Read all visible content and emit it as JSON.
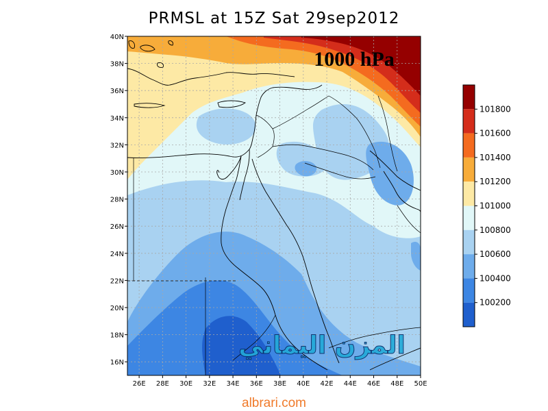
{
  "title": "PRMSL at 15Z Sat 29sep2012",
  "level_label": "1000 hPa",
  "watermark": "المزن اليماني",
  "footer": "albrari.com",
  "lat_ticks": [
    "40N",
    "38N",
    "36N",
    "34N",
    "32N",
    "30N",
    "28N",
    "26N",
    "24N",
    "22N",
    "20N",
    "18N",
    "16N"
  ],
  "lon_ticks": [
    "26E",
    "28E",
    "30E",
    "32E",
    "34E",
    "36E",
    "38E",
    "40E",
    "42E",
    "44E",
    "46E",
    "48E",
    "50E"
  ],
  "colorbar": {
    "colors": [
      "#950000",
      "#d42d1b",
      "#f46b1f",
      "#f7ac3a",
      "#fde9a5",
      "#e1f7f8",
      "#a9d2f1",
      "#6eaceb",
      "#3d86e3",
      "#1f5fcd"
    ],
    "labels": [
      "101800",
      "101600",
      "101400",
      "101200",
      "101000",
      "100800",
      "100600",
      "100400",
      "100200"
    ]
  },
  "colors": {
    "darkred": "#950000",
    "red": "#d42d1b",
    "orange": "#f46b1f",
    "lightorange": "#f7ac3a",
    "cream": "#fde9a5",
    "palecyan": "#e1f7f8",
    "lightblue": "#a9d2f1",
    "medblue": "#6eaceb",
    "blue": "#3d86e3",
    "deepblue": "#1f5fcd"
  }
}
